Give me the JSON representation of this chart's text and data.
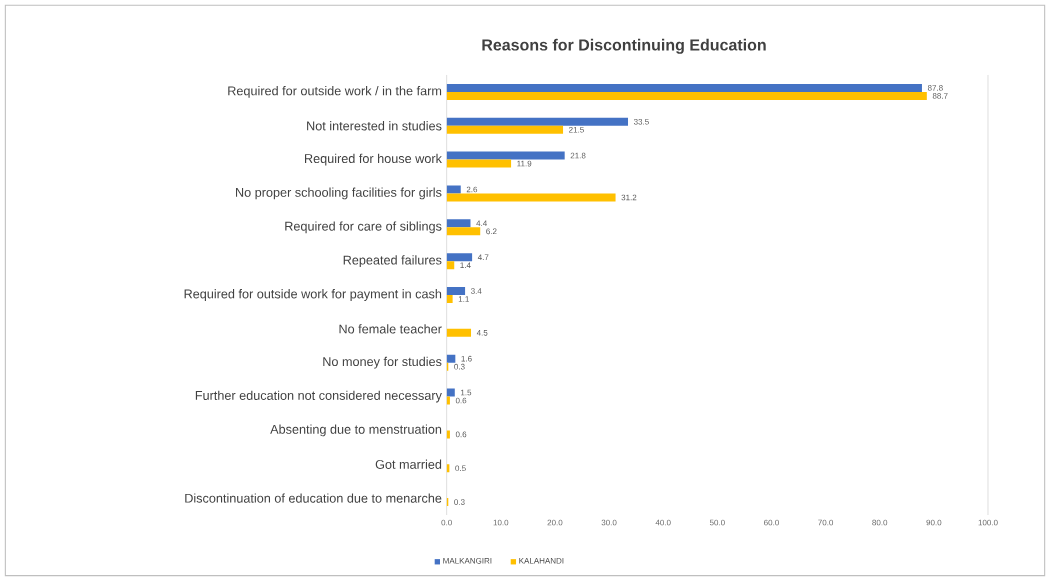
{
  "chart_data": {
    "type": "bar",
    "orientation": "horizontal",
    "title": "Reasons for Discontinuing Education",
    "categories": [
      "Required for outside work / in the farm",
      "Not interested in studies",
      "Required for house work",
      "No proper schooling facilities for girls",
      "Required for care of siblings",
      "Repeated failures",
      "Required for outside work for payment in cash",
      "No female teacher",
      "No money for studies",
      "Further education not considered necessary",
      "Absenting due to menstruation",
      "Got married",
      "Discontinuation of education due to menarche"
    ],
    "series": [
      {
        "name": "MALKANGIRI",
        "color": "#4472c4",
        "values": [
          87.8,
          33.5,
          21.8,
          2.6,
          4.4,
          4.7,
          3.4,
          null,
          1.6,
          1.5,
          null,
          null,
          null
        ]
      },
      {
        "name": "KALAHANDI",
        "color": "#ffc000",
        "values": [
          88.7,
          21.5,
          11.9,
          31.2,
          6.2,
          1.4,
          1.1,
          4.5,
          0.3,
          0.6,
          0.6,
          0.5,
          0.3
        ]
      }
    ],
    "xlim": [
      0,
      100
    ],
    "xticks": [
      {
        "value": 0,
        "label": "0.0"
      },
      {
        "value": 10,
        "label": "10.0"
      },
      {
        "value": 20,
        "label": "20.0"
      },
      {
        "value": 30,
        "label": "30.0"
      },
      {
        "value": 40,
        "label": "40.0"
      },
      {
        "value": 50,
        "label": "50.0"
      },
      {
        "value": 60,
        "label": "60.0"
      },
      {
        "value": 70,
        "label": "70.0"
      },
      {
        "value": 80,
        "label": "80.0"
      },
      {
        "value": 90,
        "label": "90.0"
      },
      {
        "value": 100,
        "label": "100.0"
      }
    ],
    "data_labels": true,
    "legend": "bottom left",
    "grid": false
  }
}
